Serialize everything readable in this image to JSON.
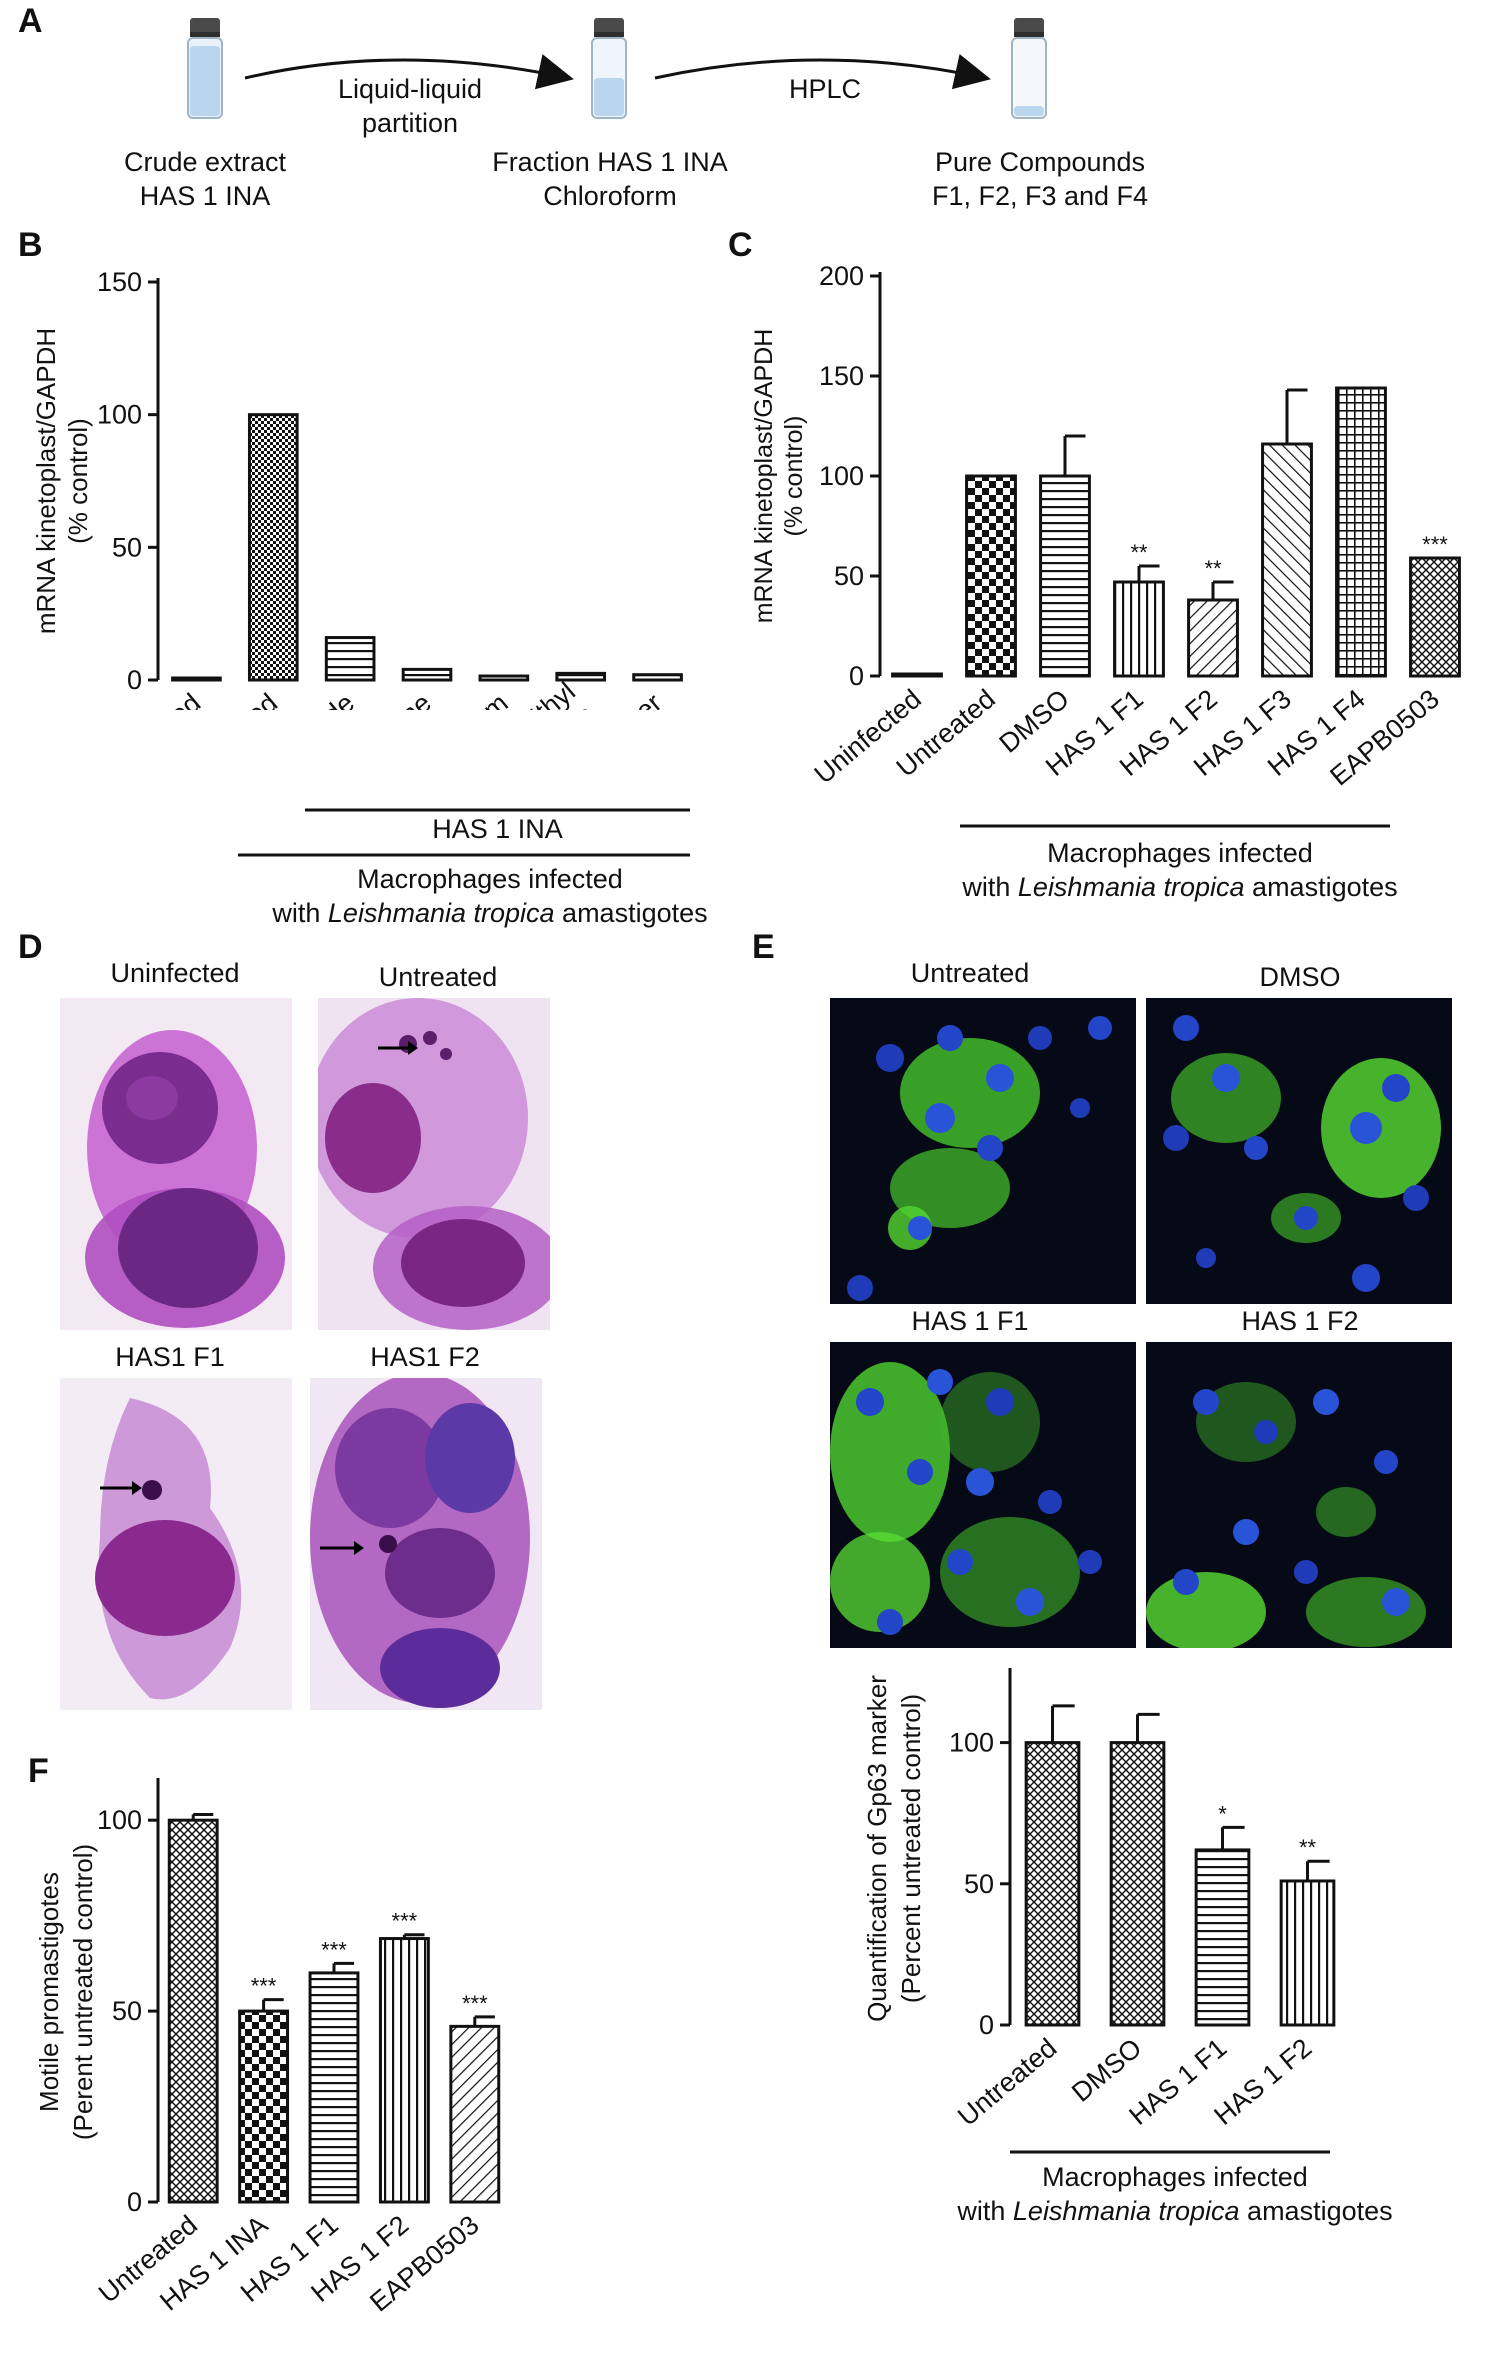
{
  "panels": {
    "A": {
      "letter": "A",
      "steps": [
        {
          "line1": "Crude extract",
          "line2": "HAS 1 INA"
        },
        {
          "line1": "Fraction HAS 1 INA",
          "line2": "Chloroform"
        },
        {
          "line1": "Pure Compounds",
          "line2": "F1, F2, F3 and F4"
        }
      ],
      "arrows": [
        {
          "line1": "Liquid-liquid",
          "line2": "partition"
        },
        {
          "line1": "HPLC",
          "line2": ""
        }
      ]
    },
    "B": {
      "letter": "B",
      "sub_group_label": "HAS 1 INA",
      "group_line1": "Macrophages infected",
      "group_line2_prefix": "with ",
      "group_line2_italic": "Leishmania tropica",
      "group_line2_suffix": " amastigotes"
    },
    "C": {
      "letter": "C",
      "group_line1": "Macrophages infected",
      "group_line2_prefix": "with ",
      "group_line2_italic": "Leishmania tropica",
      "group_line2_suffix": " amastigotes"
    },
    "D": {
      "letter": "D",
      "images": [
        "Uninfected",
        "Untreated",
        "HAS1 F1",
        "HAS1 F2"
      ]
    },
    "E": {
      "letter": "E",
      "images": [
        "Untreated",
        "DMSO",
        "HAS 1 F1",
        "HAS 1 F2"
      ],
      "group_line1": "Macrophages infected",
      "group_line2_prefix": "with ",
      "group_line2_italic": "Leishmania tropica",
      "group_line2_suffix": " amastigotes"
    },
    "F": {
      "letter": "F"
    }
  },
  "chart_data": [
    {
      "id": "B",
      "type": "bar",
      "ylabel_line1": "mRNA kinetoplast/GAPDH",
      "ylabel_line2": "(% control)",
      "ylim": [
        0,
        150
      ],
      "yticks": [
        "0",
        "50",
        "100",
        "150"
      ],
      "categories": [
        "Uninfected",
        "Untreated",
        "Crude",
        "Hexane",
        "Chloroform",
        "Ethyl\nAcetate",
        "Water"
      ],
      "values": [
        0.5,
        100,
        16,
        4,
        1.5,
        2.5,
        2
      ],
      "errors": [
        0,
        0,
        0,
        0,
        0,
        0,
        0
      ],
      "significance": [
        "",
        "",
        "",
        "",
        "",
        "",
        ""
      ],
      "patterns": [
        "solid",
        "checker",
        "hlines",
        "hlines",
        "hlines",
        "hlines",
        "hlines"
      ]
    },
    {
      "id": "C",
      "type": "bar",
      "ylabel_line1": "mRNA kinetoplast/GAPDH",
      "ylabel_line2": "(% control)",
      "ylim": [
        0,
        200
      ],
      "yticks": [
        "0",
        "50",
        "100",
        "150",
        "200"
      ],
      "categories": [
        "Uninfected",
        "Untreated",
        "DMSO",
        "HAS 1 F1",
        "HAS 1 F2",
        "HAS 1 F3",
        "HAS 1 F4",
        "EAPB0503"
      ],
      "values": [
        0.5,
        100,
        100,
        47,
        38,
        116,
        144,
        59
      ],
      "errors": [
        0,
        0,
        20,
        8,
        9,
        27,
        0,
        0
      ],
      "significance": [
        "",
        "",
        "",
        "**",
        "**",
        "",
        "",
        "***"
      ],
      "patterns": [
        "solid",
        "bigchecker",
        "hlines",
        "vlines",
        "diag",
        "diagback",
        "grid",
        "crosshatch"
      ]
    },
    {
      "id": "E",
      "type": "bar",
      "ylabel_line1": "Quantification of Gp63 marker",
      "ylabel_line2": "(Percent untreated control)",
      "ylim": [
        0,
        125
      ],
      "yticks": [
        "0",
        "50",
        "100"
      ],
      "categories": [
        "Untreated",
        "DMSO",
        "HAS 1 F1",
        "HAS 1 F2"
      ],
      "values": [
        100,
        100,
        62,
        51
      ],
      "errors": [
        13,
        10,
        8,
        7
      ],
      "significance": [
        "",
        "",
        "*",
        "**"
      ],
      "patterns": [
        "crosshatch",
        "crosshatch",
        "hlines",
        "vlines"
      ]
    },
    {
      "id": "F",
      "type": "bar",
      "ylabel_line1": "Motile promastigotes",
      "ylabel_line2": "(Perent untreated control)",
      "ylim": [
        0,
        110
      ],
      "yticks": [
        "0",
        "50",
        "100"
      ],
      "categories": [
        "Untreated",
        "HAS 1 INA",
        "HAS 1 F1",
        "HAS 1 F2",
        "EAPB0503"
      ],
      "values": [
        100,
        50,
        60,
        69,
        46
      ],
      "errors": [
        1.5,
        3,
        2.5,
        1,
        2.5
      ],
      "significance": [
        "",
        "***",
        "***",
        "***",
        "***"
      ],
      "patterns": [
        "crosshatch",
        "bigchecker",
        "hlines",
        "vlines",
        "diag"
      ]
    }
  ]
}
